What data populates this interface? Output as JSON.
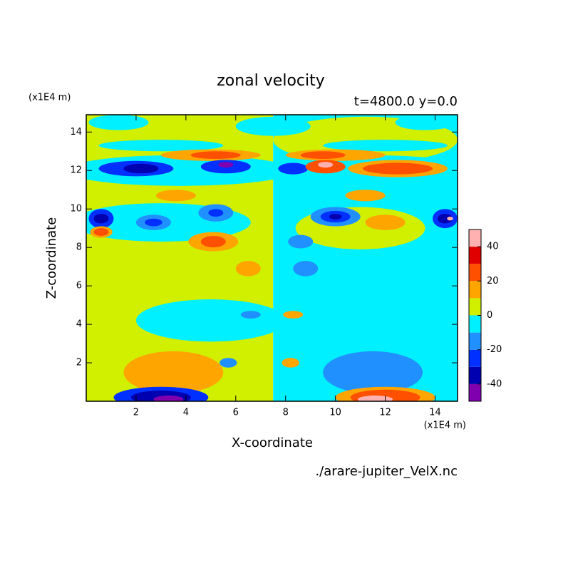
{
  "chart_data": {
    "type": "contour",
    "title": "zonal velocity",
    "subtitle": "t=4800.0 y=0.0",
    "y_unit": "(x1E4 m)",
    "x_unit": "(x1E4 m)",
    "x_label": "X-coordinate",
    "y_label": "Z-coordinate",
    "source": "./arare-jupiter_VelX.nc",
    "xlim": [
      0,
      14.9
    ],
    "ylim": [
      0,
      14.9
    ],
    "xticks": [
      2,
      4,
      6,
      8,
      10,
      12,
      14
    ],
    "yticks": [
      2,
      4,
      6,
      8,
      10,
      12,
      14
    ],
    "levels": [
      -50,
      -40,
      -30,
      -20,
      -10,
      0,
      10,
      20,
      30,
      40,
      50
    ],
    "colors": [
      "#8000b0",
      "#0000b0",
      "#0030ff",
      "#2090ff",
      "#00f0ff",
      "#d0f000",
      "#ffa500",
      "#ff5000",
      "#e00000",
      "#ffb0b0"
    ],
    "colorbar_ticks": [
      -40,
      -20,
      0,
      20,
      40
    ],
    "regions": [
      {
        "xlim": [
          0,
          7.5
        ],
        "value": 5
      },
      {
        "xlim": [
          7.5,
          14.9
        ],
        "value": -5
      }
    ],
    "features": [
      {
        "x": 11.2,
        "z": 13.6,
        "rx": 3.7,
        "rz": 1.2,
        "value": 5
      },
      {
        "x": 11,
        "z": 9,
        "rx": 2.6,
        "rz": 1.1,
        "value": 5
      },
      {
        "x": 3.75,
        "z": 12.0,
        "rx": 4.6,
        "rz": 0.8,
        "value": -5
      },
      {
        "x": 11.2,
        "z": 12.0,
        "rx": 4.6,
        "rz": 0.8,
        "value": -5
      },
      {
        "x": 7.5,
        "z": 14.3,
        "rx": 1.5,
        "rz": 0.5,
        "value": -5
      },
      {
        "x": 1.3,
        "z": 14.5,
        "rx": 1.2,
        "rz": 0.4,
        "value": -5
      },
      {
        "x": 13.6,
        "z": 14.5,
        "rx": 1.2,
        "rz": 0.4,
        "value": -5
      },
      {
        "x": 3,
        "z": 13.3,
        "rx": 2.5,
        "rz": 0.3,
        "value": -5
      },
      {
        "x": 12,
        "z": 13.3,
        "rx": 2.5,
        "rz": 0.3,
        "value": -5
      },
      {
        "x": 5,
        "z": 12.8,
        "rx": 2,
        "rz": 0.3,
        "value": 15
      },
      {
        "x": 5.2,
        "z": 12.8,
        "rx": 1,
        "rz": 0.2,
        "value": 25
      },
      {
        "x": 10,
        "z": 12.8,
        "rx": 2,
        "rz": 0.3,
        "value": 15
      },
      {
        "x": 9.5,
        "z": 12.8,
        "rx": 0.9,
        "rz": 0.2,
        "value": 25
      },
      {
        "x": 2,
        "z": 12.1,
        "rx": 1.5,
        "rz": 0.4,
        "value": -25
      },
      {
        "x": 2.2,
        "z": 12.1,
        "rx": 0.7,
        "rz": 0.25,
        "value": -35
      },
      {
        "x": 5.6,
        "z": 12.2,
        "rx": 1,
        "rz": 0.35,
        "value": -25
      },
      {
        "x": 5.6,
        "z": 12.3,
        "rx": 0.3,
        "rz": 0.15,
        "value": -45
      },
      {
        "x": 12.5,
        "z": 12.1,
        "rx": 2,
        "rz": 0.45,
        "value": 15
      },
      {
        "x": 12.5,
        "z": 12.1,
        "rx": 1.4,
        "rz": 0.3,
        "value": 25
      },
      {
        "x": 8.3,
        "z": 12.1,
        "rx": 0.6,
        "rz": 0.3,
        "value": -25
      },
      {
        "x": 9.6,
        "z": 12.2,
        "rx": 0.8,
        "rz": 0.35,
        "value": 25
      },
      {
        "x": 9.6,
        "z": 12.3,
        "rx": 0.3,
        "rz": 0.15,
        "value": 45
      },
      {
        "x": 3.6,
        "z": 10.7,
        "rx": 0.8,
        "rz": 0.3,
        "value": 15
      },
      {
        "x": 11.2,
        "z": 10.7,
        "rx": 0.8,
        "rz": 0.3,
        "value": 15
      },
      {
        "x": 3,
        "z": 9.3,
        "rx": 3.6,
        "rz": 1,
        "value": -5
      },
      {
        "x": 0.6,
        "z": 9.5,
        "rx": 0.5,
        "rz": 0.5,
        "value": -25
      },
      {
        "x": 0.6,
        "z": 9.5,
        "rx": 0.3,
        "rz": 0.25,
        "value": -35
      },
      {
        "x": 0.6,
        "z": 8.8,
        "rx": 0.45,
        "rz": 0.3,
        "value": 15
      },
      {
        "x": 0.6,
        "z": 8.8,
        "rx": 0.3,
        "rz": 0.2,
        "value": 25
      },
      {
        "x": 2.7,
        "z": 9.3,
        "rx": 0.7,
        "rz": 0.4,
        "value": -15
      },
      {
        "x": 2.7,
        "z": 9.3,
        "rx": 0.35,
        "rz": 0.2,
        "value": -25
      },
      {
        "x": 5.2,
        "z": 9.8,
        "rx": 0.7,
        "rz": 0.45,
        "value": -15
      },
      {
        "x": 5.2,
        "z": 9.8,
        "rx": 0.3,
        "rz": 0.2,
        "value": -25
      },
      {
        "x": 5.1,
        "z": 8.3,
        "rx": 1,
        "rz": 0.5,
        "value": 15
      },
      {
        "x": 5.1,
        "z": 8.3,
        "rx": 0.5,
        "rz": 0.3,
        "value": 25
      },
      {
        "x": 10,
        "z": 9.6,
        "rx": 1,
        "rz": 0.5,
        "value": -15
      },
      {
        "x": 10,
        "z": 9.6,
        "rx": 0.6,
        "rz": 0.3,
        "value": -25
      },
      {
        "x": 10,
        "z": 9.6,
        "rx": 0.25,
        "rz": 0.15,
        "value": -35
      },
      {
        "x": 12,
        "z": 9.3,
        "rx": 0.8,
        "rz": 0.4,
        "value": 15
      },
      {
        "x": 14.4,
        "z": 9.5,
        "rx": 0.5,
        "rz": 0.5,
        "value": -25
      },
      {
        "x": 14.4,
        "z": 9.5,
        "rx": 0.3,
        "rz": 0.25,
        "value": -35
      },
      {
        "x": 14.6,
        "z": 9.5,
        "rx": 0.12,
        "rz": 0.1,
        "value": 45
      },
      {
        "x": 8.6,
        "z": 8.3,
        "rx": 0.5,
        "rz": 0.35,
        "value": -15
      },
      {
        "x": 6.5,
        "z": 6.9,
        "rx": 0.5,
        "rz": 0.4,
        "value": 15
      },
      {
        "x": 8.8,
        "z": 6.9,
        "rx": 0.5,
        "rz": 0.4,
        "value": -15
      },
      {
        "x": 5,
        "z": 4.2,
        "rx": 3,
        "rz": 1.1,
        "value": -5
      },
      {
        "x": 6.6,
        "z": 4.5,
        "rx": 0.4,
        "rz": 0.2,
        "value": -15
      },
      {
        "x": 8.3,
        "z": 4.5,
        "rx": 0.4,
        "rz": 0.2,
        "value": 15
      },
      {
        "x": 3.5,
        "z": 1.5,
        "rx": 2,
        "rz": 1.1,
        "value": 15
      },
      {
        "x": 11.5,
        "z": 1.5,
        "rx": 2,
        "rz": 1.1,
        "value": -15
      },
      {
        "x": 5.7,
        "z": 2,
        "rx": 0.35,
        "rz": 0.25,
        "value": -15
      },
      {
        "x": 8.2,
        "z": 2,
        "rx": 0.35,
        "rz": 0.25,
        "value": 15
      },
      {
        "x": 3,
        "z": 0.2,
        "rx": 1.9,
        "rz": 0.55,
        "value": -25
      },
      {
        "x": 3,
        "z": 0.2,
        "rx": 1.2,
        "rz": 0.35,
        "value": -35
      },
      {
        "x": 3.3,
        "z": 0.1,
        "rx": 0.6,
        "rz": 0.2,
        "value": -45
      },
      {
        "x": 12,
        "z": 0.2,
        "rx": 2,
        "rz": 0.55,
        "value": 15
      },
      {
        "x": 12,
        "z": 0.2,
        "rx": 1.4,
        "rz": 0.4,
        "value": 25
      },
      {
        "x": 11.6,
        "z": 0.1,
        "rx": 0.7,
        "rz": 0.2,
        "value": 45
      }
    ]
  }
}
